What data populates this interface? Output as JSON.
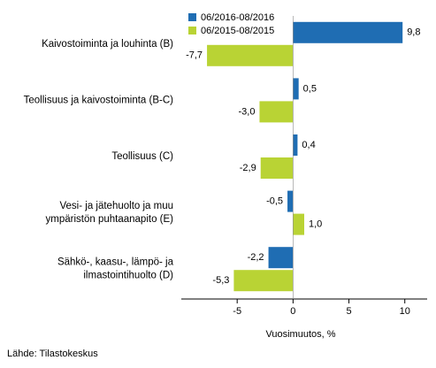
{
  "chart_data": {
    "type": "hbar",
    "categories": [
      "Kaivostoiminta ja louhinta (B)",
      "Teollisuus ja kaivostoiminta (B-C)",
      "Teollisuus (C)",
      "Vesi- ja jätehuolto ja muu\nympäristön puhtaanapito (E)",
      "Sähkö-, kaasu-, lämpö- ja\nilmastointihuolto (D)"
    ],
    "series": [
      {
        "name": "06/2016-08/2016",
        "color": "#1f6db3",
        "values": [
          9.8,
          0.5,
          0.4,
          -0.5,
          -2.2
        ],
        "value_labels": [
          "9,8",
          "0,5",
          "0,4",
          "-0,5",
          "-2,2"
        ]
      },
      {
        "name": "06/2015-08/2015",
        "color": "#b9d334",
        "values": [
          -7.7,
          -3.0,
          -2.9,
          1.0,
          -5.3
        ],
        "value_labels": [
          "-7,7",
          "-3,0",
          "-2,9",
          "1,0",
          "-5,3"
        ]
      }
    ],
    "xlim": [
      -10,
      12
    ],
    "xticks": [
      -5,
      0,
      5,
      10
    ],
    "xlabel": "Vuosimuutos, %",
    "source": "Lähde: Tilastokeskus",
    "legend": "top-left"
  }
}
